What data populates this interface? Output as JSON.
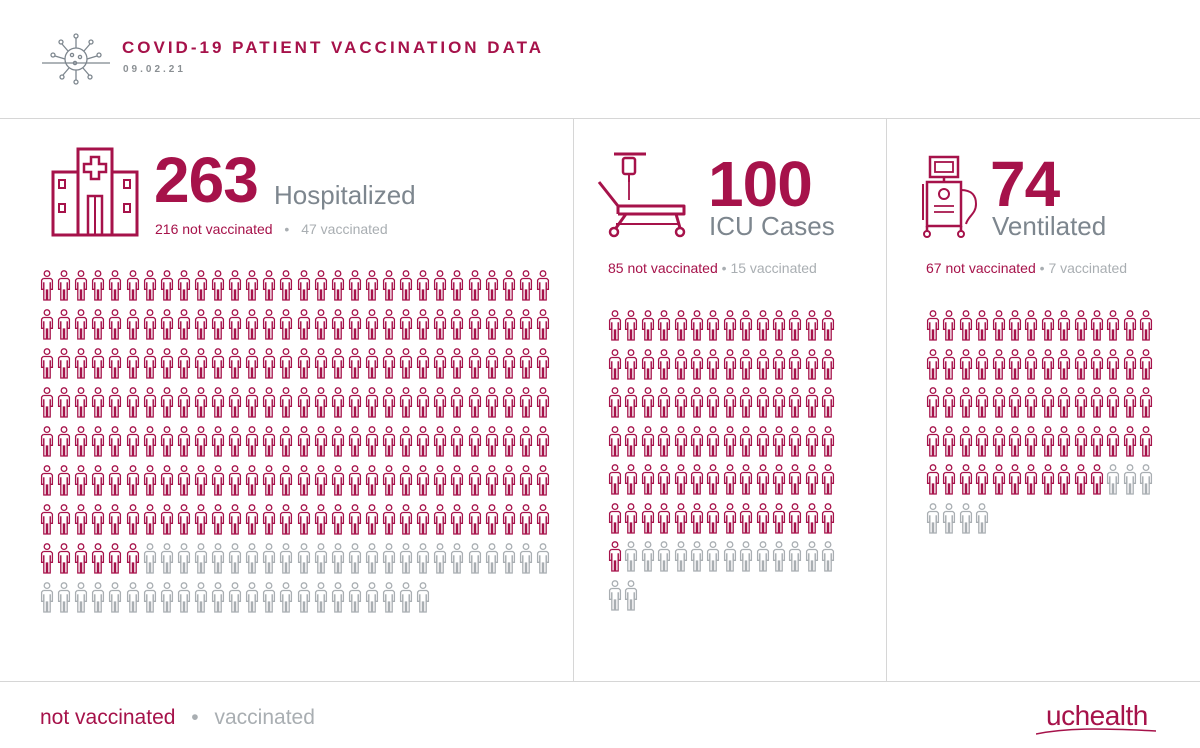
{
  "header": {
    "title": "COVID-19 PATIENT VACCINATION DATA",
    "date": "09.02.21",
    "icon": "virus-icon"
  },
  "colors": {
    "not_vaccinated": "#a6124a",
    "vaccinated": "#a9aeb2",
    "label": "#7d868e"
  },
  "panels": [
    {
      "number": "263",
      "label": "Hospitalized",
      "icon": "hospital-icon",
      "not_vaccinated_text": "216 not vaccinated",
      "separator": "•",
      "vaccinated_text": "47 vaccinated"
    },
    {
      "number": "100",
      "label": "ICU Cases",
      "icon": "hospital-bed-icon",
      "not_vaccinated_text": "85 not vaccinated",
      "separator": "•",
      "vaccinated_text": "15 vaccinated"
    },
    {
      "number": "74",
      "label": "Ventilated",
      "icon": "ventilator-icon",
      "not_vaccinated_text": "67 not vaccinated",
      "separator": "•",
      "vaccinated_text": "7 vaccinated"
    }
  ],
  "chart_data": [
    {
      "type": "pictogram",
      "label": "Hospitalized",
      "total": 263,
      "series": [
        {
          "name": "not vaccinated",
          "value": 216
        },
        {
          "name": "vaccinated",
          "value": 47
        }
      ]
    },
    {
      "type": "pictogram",
      "label": "ICU Cases",
      "total": 100,
      "series": [
        {
          "name": "not vaccinated",
          "value": 85
        },
        {
          "name": "vaccinated",
          "value": 15
        }
      ]
    },
    {
      "type": "pictogram",
      "label": "Ventilated",
      "total": 74,
      "series": [
        {
          "name": "not vaccinated",
          "value": 67
        },
        {
          "name": "vaccinated",
          "value": 7
        }
      ]
    }
  ],
  "legend": {
    "not_vaccinated": "not vaccinated",
    "separator": "•",
    "vaccinated": "vaccinated"
  },
  "brand": {
    "logo": "uchealth"
  }
}
